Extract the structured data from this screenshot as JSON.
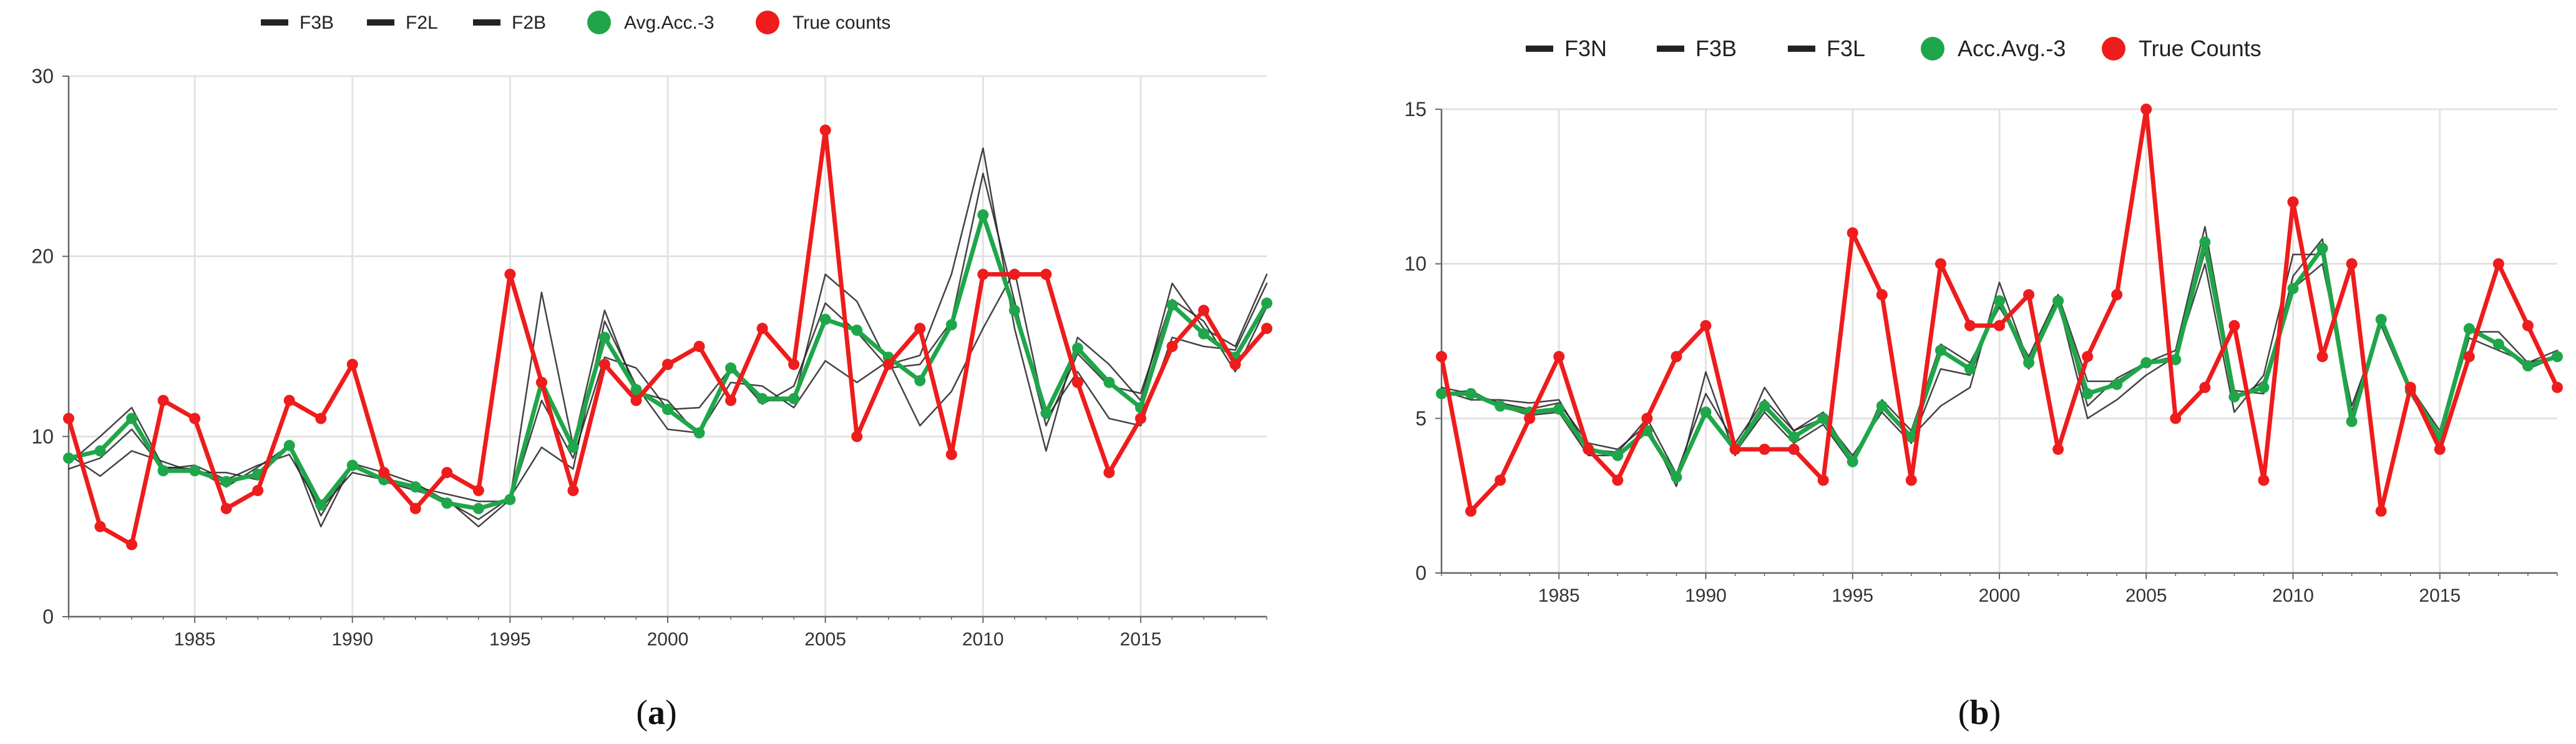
{
  "figure": {
    "captions": [
      {
        "open": "(",
        "letter": "a",
        "close": ")"
      },
      {
        "open": "(",
        "letter": "b",
        "close": ")"
      }
    ]
  },
  "colors": {
    "forecast_line": "#222222",
    "average": "#1fa64a",
    "true_counts": "#ee1c1c",
    "grid": "#e3e3e3",
    "axis": "#666666"
  },
  "chart_data": [
    {
      "type": "line",
      "panel": "a",
      "legend_position": "top",
      "grid": true,
      "xlim": [
        1981,
        2019
      ],
      "ylim": [
        0,
        30
      ],
      "x_ticks": [
        1985,
        1990,
        1995,
        2000,
        2005,
        2010,
        2015
      ],
      "y_ticks": [
        0,
        10,
        20,
        30
      ],
      "x": [
        1981,
        1982,
        1983,
        1984,
        1985,
        1986,
        1987,
        1988,
        1989,
        1990,
        1991,
        1992,
        1993,
        1994,
        1995,
        1996,
        1997,
        1998,
        1999,
        2000,
        2001,
        2002,
        2003,
        2004,
        2005,
        2006,
        2007,
        2008,
        2009,
        2010,
        2011,
        2012,
        2013,
        2014,
        2015,
        2016,
        2017,
        2018,
        2019
      ],
      "series": [
        {
          "name": "F3B",
          "role": "forecast",
          "values": [
            8.5,
            10,
            11.6,
            8.3,
            8.2,
            7.2,
            8.3,
            9.5,
            5,
            8.5,
            7.5,
            7,
            6.5,
            5,
            6.5,
            18,
            9.5,
            17,
            12.5,
            12,
            10,
            14,
            12,
            12,
            19,
            17.5,
            14,
            14.5,
            19,
            26,
            16,
            9.2,
            15.5,
            14,
            12,
            18.5,
            16,
            15,
            19
          ]
        },
        {
          "name": "F2L",
          "role": "forecast",
          "values": [
            9,
            7.8,
            9.2,
            8.6,
            8,
            8,
            7.6,
            9.7,
            5.6,
            8.5,
            8,
            7.4,
            6.4,
            5.4,
            6.6,
            9.4,
            8.2,
            16.4,
            12.8,
            10.4,
            10.2,
            13,
            12.8,
            11.6,
            14.2,
            13,
            14.2,
            10.6,
            12.5,
            16,
            19.2,
            11,
            13.6,
            11,
            10.6,
            15.5,
            15,
            14.8,
            18.5
          ]
        },
        {
          "name": "F2B",
          "role": "forecast",
          "values": [
            8.2,
            8.8,
            10.4,
            8.2,
            8.4,
            7.6,
            8.4,
            9,
            6,
            8,
            7.6,
            7.2,
            6.8,
            6.4,
            6.4,
            12,
            8.8,
            14.4,
            13.8,
            11.5,
            11.6,
            13.8,
            11.8,
            12.8,
            17.4,
            15.8,
            13.8,
            14,
            16.4,
            24.6,
            17.5,
            10.6,
            14.6,
            12.8,
            12.4,
            17.6,
            16.4,
            13.6,
            17.2
          ]
        },
        {
          "name": "Avg.Acc.-3",
          "role": "average",
          "values": [
            8.8,
            9.2,
            11,
            8.1,
            8.1,
            7.5,
            7.9,
            9.5,
            6.2,
            8.4,
            7.6,
            7.2,
            6.3,
            6,
            6.5,
            13,
            9.4,
            15.5,
            12.6,
            11.5,
            10.2,
            13.8,
            12.1,
            12.1,
            16.5,
            15.9,
            14.4,
            13.1,
            16.2,
            22.3,
            17,
            11.3,
            14.9,
            13,
            11.6,
            17.3,
            15.7,
            14.4,
            17.4
          ]
        },
        {
          "name": "True counts",
          "role": "true",
          "values": [
            11,
            5,
            4,
            12,
            11,
            6,
            7,
            12,
            11,
            14,
            8,
            6,
            8,
            7,
            19,
            13,
            7,
            14,
            12,
            14,
            15,
            12,
            16,
            14,
            27,
            10,
            14,
            16,
            9,
            19,
            19,
            19,
            13,
            8,
            11,
            15,
            17,
            14,
            16
          ]
        }
      ]
    },
    {
      "type": "line",
      "panel": "b",
      "legend_position": "top",
      "grid": true,
      "xlim": [
        1981,
        2019
      ],
      "ylim": [
        0,
        15
      ],
      "x_ticks": [
        1985,
        1990,
        1995,
        2000,
        2005,
        2010,
        2015
      ],
      "y_ticks": [
        0,
        5,
        10,
        15
      ],
      "x": [
        1981,
        1982,
        1983,
        1984,
        1985,
        1986,
        1987,
        1988,
        1989,
        1990,
        1991,
        1992,
        1993,
        1994,
        1995,
        1996,
        1997,
        1998,
        1999,
        2000,
        2001,
        2002,
        2003,
        2004,
        2005,
        2006,
        2007,
        2008,
        2009,
        2010,
        2011,
        2012,
        2013,
        2014,
        2015,
        2016,
        2017,
        2018,
        2019
      ],
      "series": [
        {
          "name": "F3N",
          "role": "forecast",
          "values": [
            6,
            5.8,
            5.5,
            5.3,
            5.5,
            4.2,
            4,
            4.8,
            2.8,
            6.5,
            3.8,
            6,
            4.6,
            5.2,
            3.6,
            5.5,
            4.4,
            5.4,
            6,
            9.4,
            6.8,
            8.8,
            5,
            5.6,
            6.4,
            7,
            10,
            5.2,
            6.4,
            10.3,
            10.3,
            4.8,
            8.2,
            5.8,
            4.2,
            7.8,
            7.8,
            6.8,
            7
          ]
        },
        {
          "name": "F3B",
          "role": "forecast",
          "values": [
            5.8,
            5.9,
            5.4,
            5.1,
            5.2,
            3.8,
            3.8,
            4.6,
            3,
            5.2,
            3.9,
            5.2,
            4.2,
            4.8,
            3.5,
            5.6,
            4.6,
            7.4,
            6.8,
            8.6,
            7,
            9,
            5.4,
            6.3,
            6.8,
            7.2,
            11.2,
            5.9,
            5.8,
            9.6,
            10.8,
            5.2,
            8.2,
            6,
            4.6,
            8,
            7.4,
            6.6,
            7
          ]
        },
        {
          "name": "F3L",
          "role": "forecast",
          "values": [
            5.9,
            5.6,
            5.6,
            5.5,
            5.6,
            4,
            3.9,
            5,
            3.2,
            5.8,
            4.2,
            5.6,
            4.6,
            5,
            3.8,
            5.2,
            4.2,
            6.6,
            6.4,
            8.8,
            6.6,
            9,
            6.2,
            6.2,
            6.8,
            7,
            10.4,
            5.6,
            6.2,
            9.2,
            10,
            5.4,
            8,
            5.8,
            4.4,
            7.6,
            7.2,
            6.8,
            7.2
          ]
        },
        {
          "name": "Acc.Avg.-3",
          "role": "average",
          "values": [
            5.8,
            5.8,
            5.4,
            5.2,
            5.3,
            4,
            3.8,
            4.6,
            3.1,
            5.2,
            4,
            5.4,
            4.4,
            5,
            3.6,
            5.4,
            4.4,
            7.2,
            6.6,
            8.8,
            6.8,
            8.8,
            5.8,
            6.1,
            6.8,
            6.9,
            10.7,
            5.7,
            6,
            9.2,
            10.5,
            4.9,
            8.2,
            5.9,
            4.4,
            7.9,
            7.4,
            6.7,
            7
          ]
        },
        {
          "name": "True Counts",
          "role": "true",
          "values": [
            7,
            2,
            3,
            5,
            7,
            4,
            3,
            5,
            7,
            8,
            4,
            4,
            4,
            3,
            11,
            9,
            3,
            10,
            8,
            8,
            9,
            4,
            7,
            9,
            15,
            5,
            6,
            8,
            3,
            12,
            7,
            10,
            2,
            6,
            4,
            7,
            10,
            8,
            6
          ]
        }
      ]
    }
  ]
}
